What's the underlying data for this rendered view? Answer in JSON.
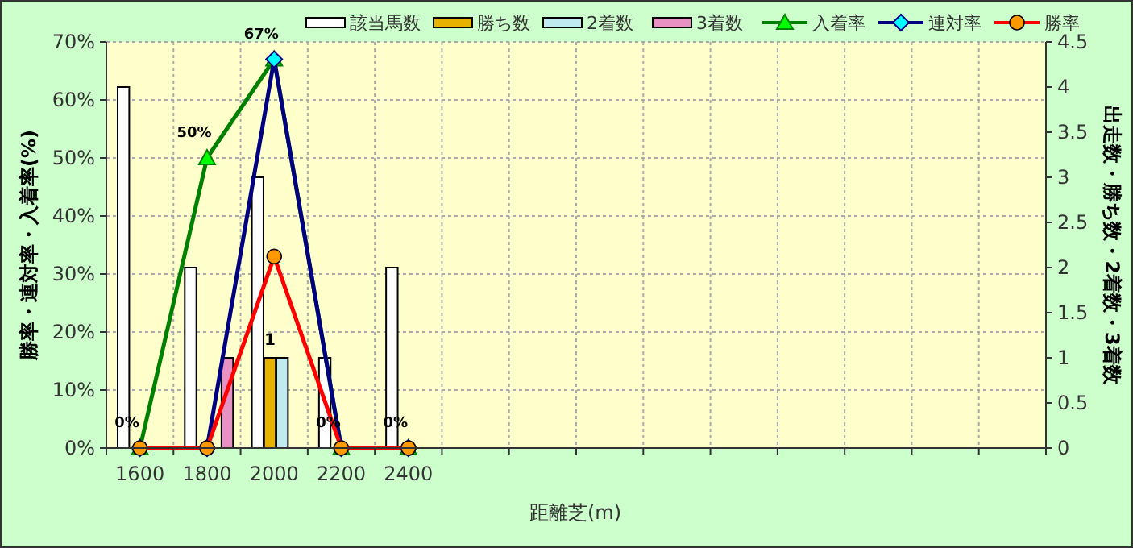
{
  "chart_data": {
    "type": "bar",
    "categories": [
      "1600",
      "1800",
      "2000",
      "2200",
      "2400",
      null,
      null,
      null,
      null,
      null,
      null,
      null,
      null,
      null
    ],
    "xlabel": "距離芝(m)",
    "ylabel": "勝率・連対率・入着率(%)",
    "y2label": "出走数・勝ち数・2着数・3着数",
    "ylim": [
      0,
      70
    ],
    "yticks": [
      {
        "value": 0,
        "label": "0%"
      },
      {
        "value": 10,
        "label": "10%"
      },
      {
        "value": 20,
        "label": "20%"
      },
      {
        "value": 30,
        "label": "30%"
      },
      {
        "value": 40,
        "label": "40%"
      },
      {
        "value": 50,
        "label": "50%"
      },
      {
        "value": 60,
        "label": "60%"
      },
      {
        "value": 70,
        "label": "70%"
      }
    ],
    "y2lim": [
      0,
      4.5
    ],
    "y2ticks": [
      0,
      0.5,
      1,
      1.5,
      2,
      2.5,
      3,
      3.5,
      4,
      4.5
    ],
    "grid": true,
    "legend": "top",
    "series": [
      {
        "name": "該当馬数",
        "axis": "y2",
        "color": "#ffffff",
        "values": [
          4,
          2,
          3,
          1,
          2,
          null,
          null,
          null,
          null,
          null,
          null,
          null,
          null,
          null
        ]
      },
      {
        "name": "勝ち数",
        "axis": "y2",
        "color": "#e6b400",
        "values": [
          0,
          0,
          1,
          0,
          0,
          null,
          null,
          null,
          null,
          null,
          null,
          null,
          null,
          null
        ],
        "value_labels": [
          null,
          null,
          "1",
          null,
          null,
          null,
          null,
          null,
          null,
          null,
          null,
          null,
          null,
          null
        ]
      },
      {
        "name": "2着数",
        "axis": "y2",
        "color": "#bfeaf0",
        "values": [
          0,
          0,
          1,
          0,
          0,
          null,
          null,
          null,
          null,
          null,
          null,
          null,
          null,
          null
        ]
      },
      {
        "name": "3着数",
        "axis": "y2",
        "color": "#e892c4",
        "values": [
          0,
          1,
          0,
          0,
          0,
          null,
          null,
          null,
          null,
          null,
          null,
          null,
          null,
          null
        ]
      },
      {
        "name": "入着率",
        "type": "line",
        "color": "#008000",
        "marker": "triangle",
        "values": [
          0,
          50,
          67,
          0,
          0,
          null,
          null,
          null,
          null,
          null,
          null,
          null,
          null,
          null
        ],
        "value_labels": [
          "0%",
          "50%",
          "67%",
          "0%",
          "0%",
          null,
          null,
          null,
          null,
          null,
          null,
          null,
          null,
          null
        ]
      },
      {
        "name": "連対率",
        "type": "line",
        "color": "#000080",
        "marker": "diamond",
        "values": [
          0,
          0,
          67,
          0,
          0,
          null,
          null,
          null,
          null,
          null,
          null,
          null,
          null,
          null
        ]
      },
      {
        "name": "勝率",
        "type": "line",
        "color": "#ff0000",
        "marker": "circle",
        "values": [
          0,
          0,
          33,
          0,
          0,
          null,
          null,
          null,
          null,
          null,
          null,
          null,
          null,
          null
        ]
      }
    ]
  }
}
